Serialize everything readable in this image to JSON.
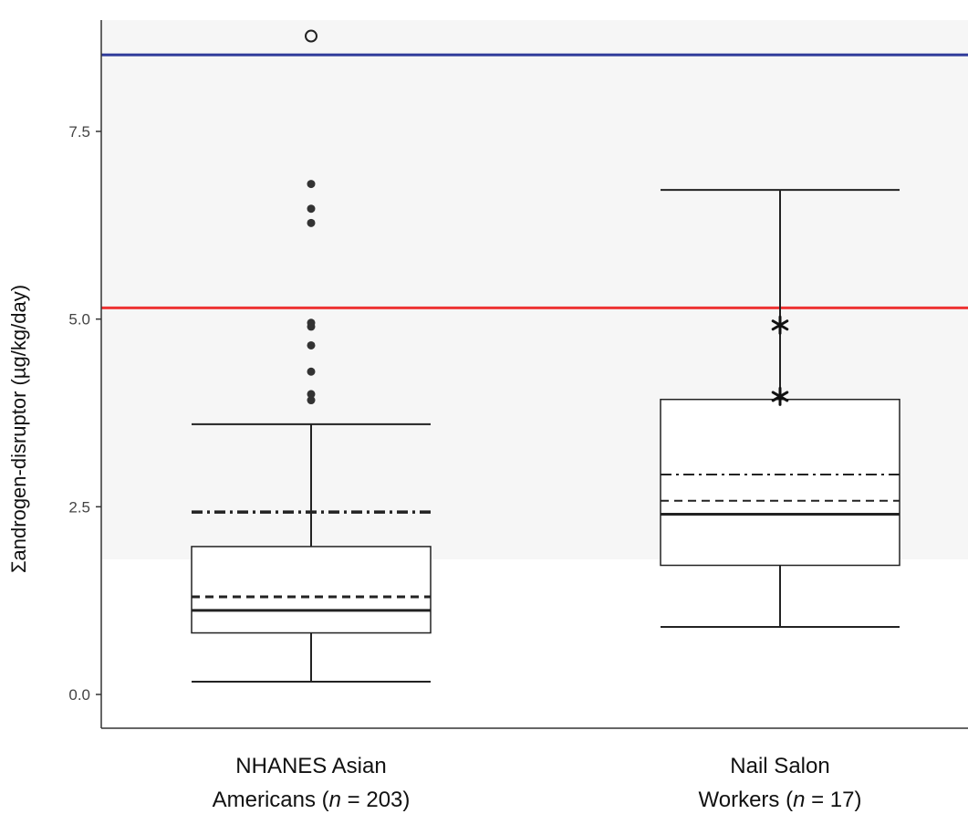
{
  "chart_data": {
    "type": "box",
    "ylabel": "Σandrogen-disruptor (µg/kg/day)",
    "ylim": [
      -0.4,
      8.9
    ],
    "yticks": [
      0.0,
      2.5,
      5.0,
      7.5
    ],
    "ytick_labels": [
      "0.0",
      "2.5",
      "5.0",
      "7.5"
    ],
    "grid": false,
    "categories": [
      {
        "label_line1": "NHANES Asian",
        "label_line2_prefix": "Americans (",
        "n_symbol": "n",
        "label_line2_suffix": " = 203)"
      },
      {
        "label_line1": "Nail Salon",
        "label_line2_prefix": "Workers (",
        "n_symbol": "n",
        "label_line2_suffix": " = 17)"
      }
    ],
    "boxes": [
      {
        "whisker_low": 0.17,
        "q1": 0.82,
        "median": 1.12,
        "q3": 1.97,
        "whisker_high": 3.6,
        "dashed_line": 1.3,
        "dashdot_line": 2.43,
        "outliers_dot": [
          3.92,
          4.0,
          4.3,
          4.65,
          4.9,
          4.95,
          6.28,
          6.47,
          6.8
        ],
        "outliers_circle": [
          8.77
        ],
        "outliers_star": []
      },
      {
        "whisker_low": 0.9,
        "q1": 1.72,
        "median": 2.4,
        "q3": 3.93,
        "whisker_high": 6.72,
        "dashed_line": 2.58,
        "dashdot_line": 2.93,
        "outliers_dot": [],
        "outliers_circle": [],
        "outliers_star": [
          3.97,
          4.92
        ]
      }
    ],
    "reference_lines": [
      {
        "value": 8.52,
        "color": "#2e3a9a"
      },
      {
        "value": 5.15,
        "color": "#ee3333"
      }
    ],
    "shaded_band": {
      "from": 1.8,
      "to": 8.9,
      "color": "#f6f6f6"
    }
  }
}
